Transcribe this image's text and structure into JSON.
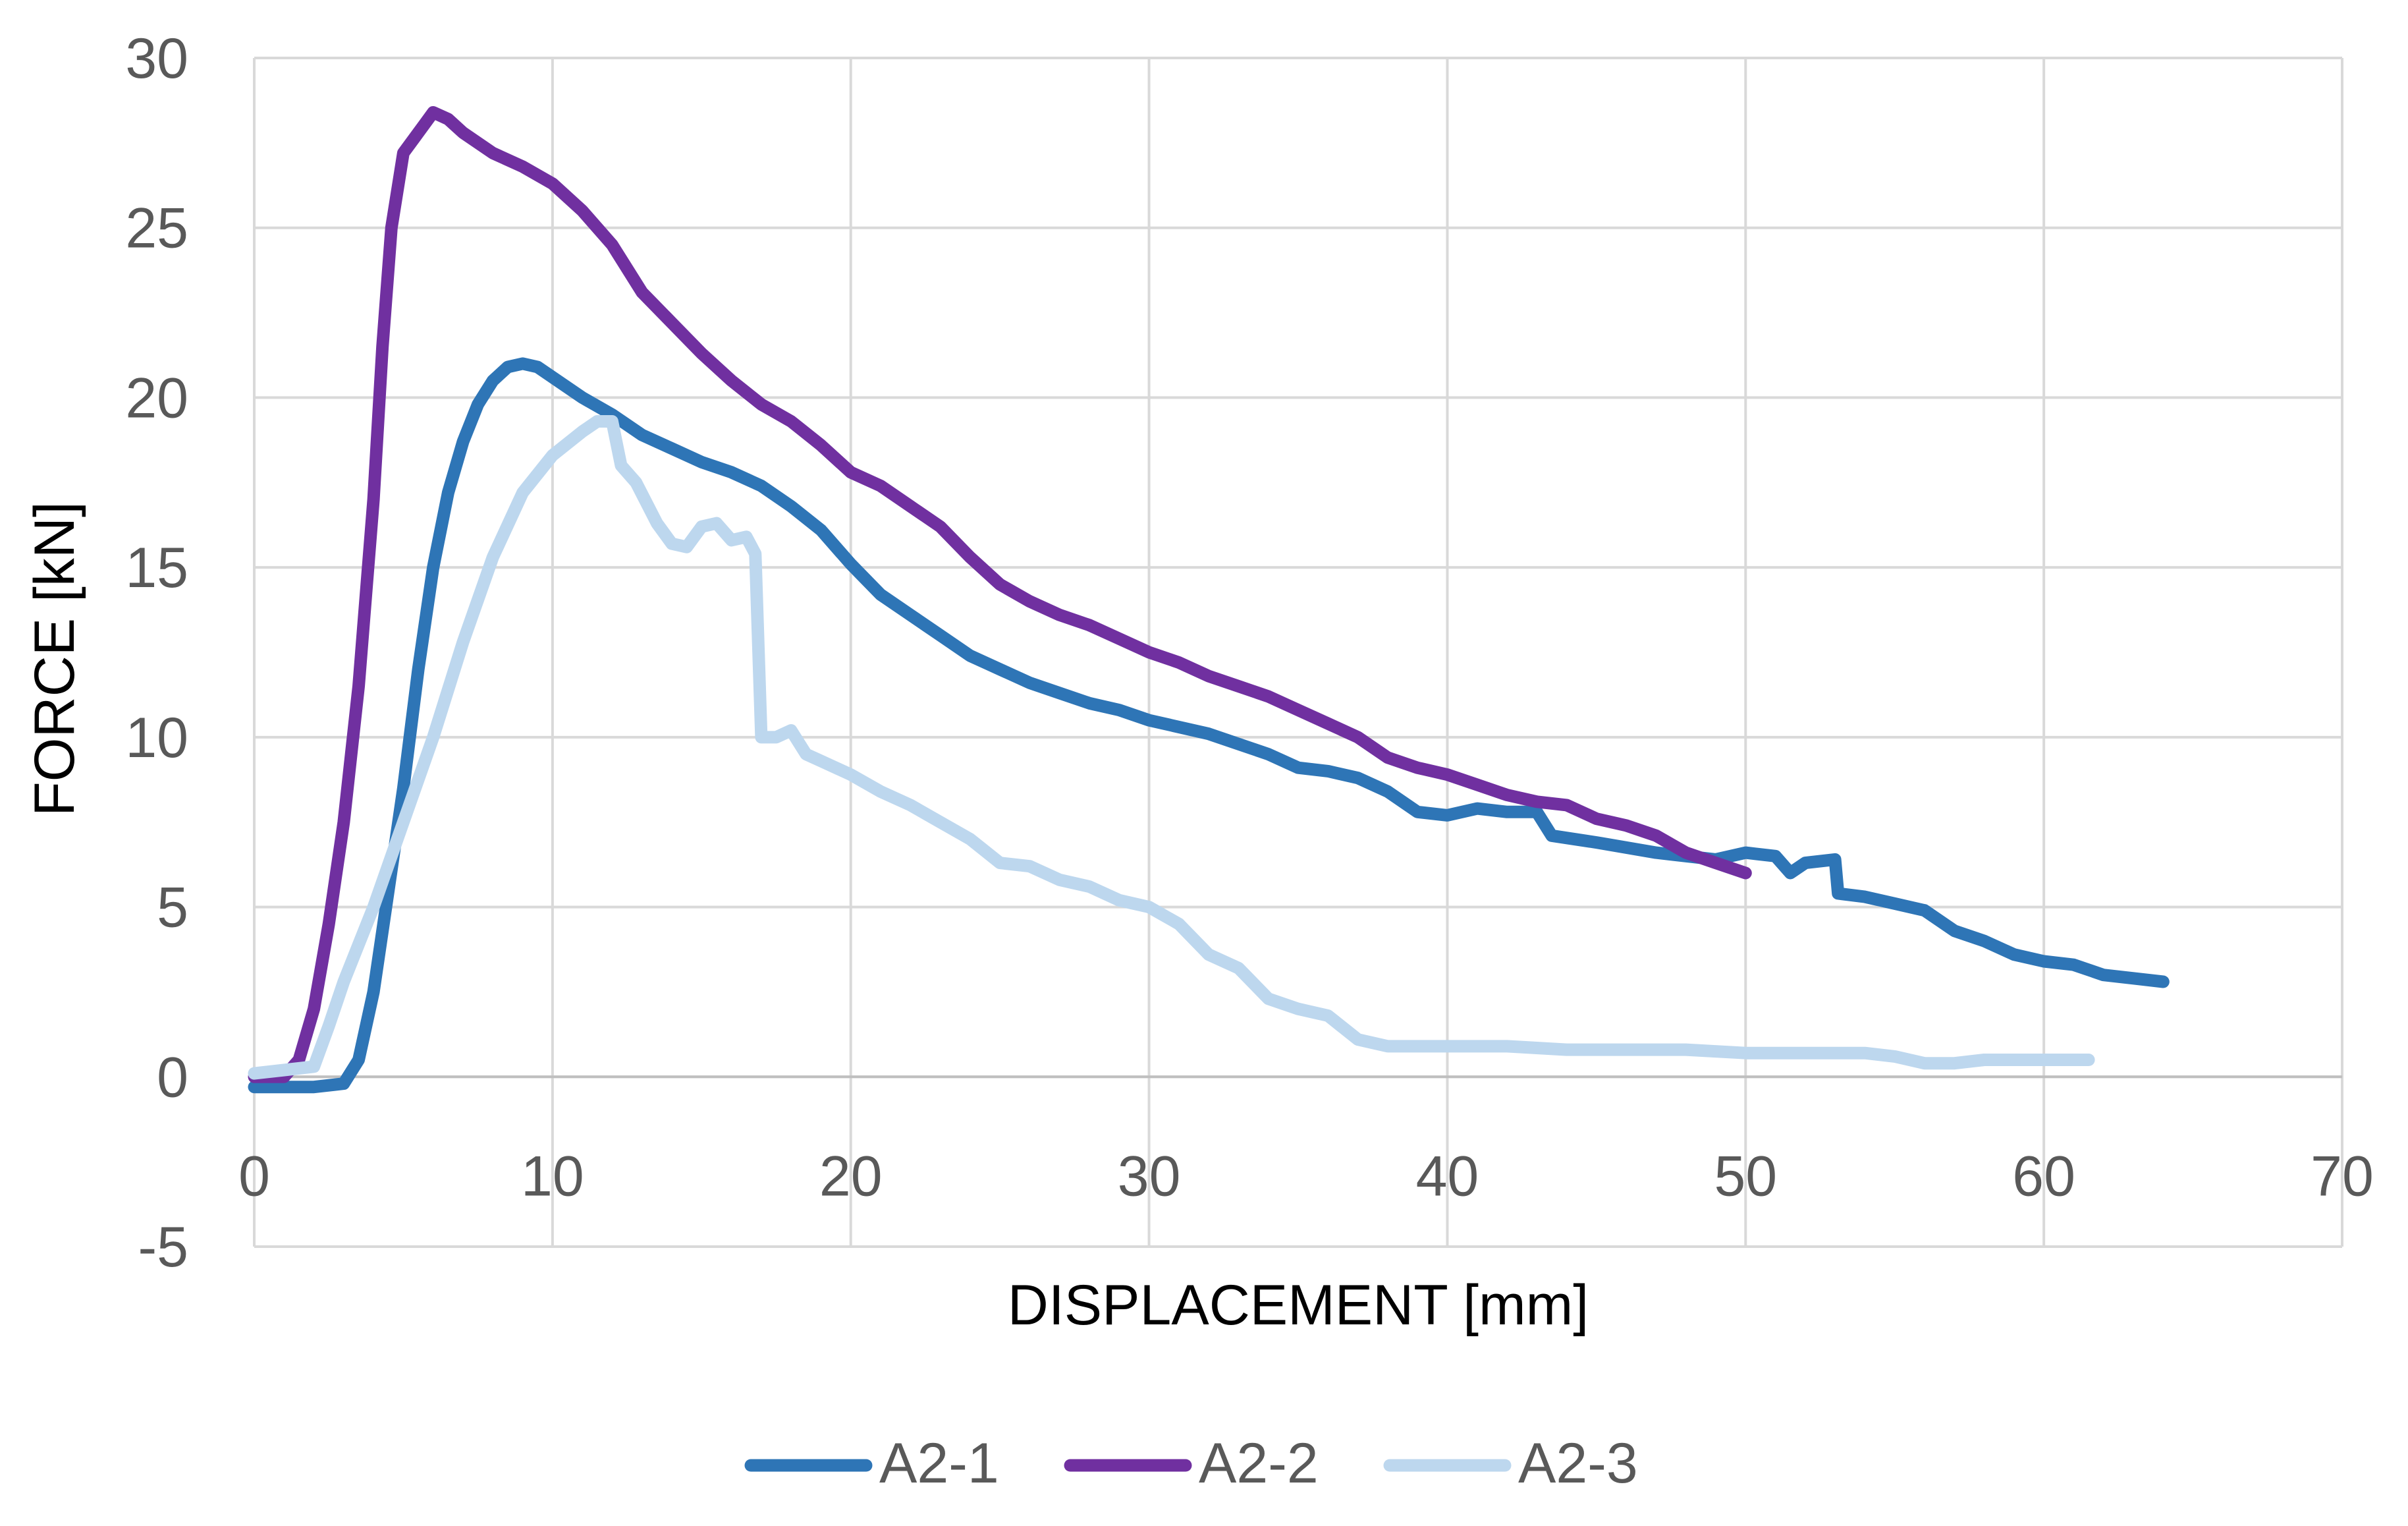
{
  "chart_data": {
    "type": "line",
    "title": "",
    "xlabel": "DISPLACEMENT [mm]",
    "ylabel": "FORCE [kN]",
    "xlim": [
      0,
      70
    ],
    "ylim": [
      -5,
      30
    ],
    "xticks": [
      0,
      10,
      20,
      30,
      40,
      50,
      60,
      70
    ],
    "yticks": [
      -5,
      0,
      5,
      10,
      15,
      20,
      25,
      30
    ],
    "grid": true,
    "legend_position": "bottom",
    "series": [
      {
        "name": "A2-1",
        "color": "#2E75B6",
        "points": [
          [
            0,
            -0.3
          ],
          [
            1,
            -0.3
          ],
          [
            2,
            -0.3
          ],
          [
            3,
            -0.2
          ],
          [
            3.5,
            0.5
          ],
          [
            4,
            2.5
          ],
          [
            4.5,
            5.5
          ],
          [
            5,
            8.5
          ],
          [
            5.5,
            12
          ],
          [
            6,
            15
          ],
          [
            6.5,
            17.2
          ],
          [
            7,
            18.7
          ],
          [
            7.5,
            19.8
          ],
          [
            8,
            20.5
          ],
          [
            8.5,
            20.9
          ],
          [
            9,
            21.0
          ],
          [
            9.5,
            20.9
          ],
          [
            10,
            20.6
          ],
          [
            11,
            20.0
          ],
          [
            12,
            19.5
          ],
          [
            13,
            18.9
          ],
          [
            14,
            18.5
          ],
          [
            15,
            18.1
          ],
          [
            16,
            17.8
          ],
          [
            17,
            17.4
          ],
          [
            18,
            16.8
          ],
          [
            19,
            16.1
          ],
          [
            20,
            15.1
          ],
          [
            21,
            14.2
          ],
          [
            22,
            13.6
          ],
          [
            23,
            13.0
          ],
          [
            24,
            12.4
          ],
          [
            25,
            12.0
          ],
          [
            26,
            11.6
          ],
          [
            27,
            11.3
          ],
          [
            28,
            11.0
          ],
          [
            29,
            10.8
          ],
          [
            30,
            10.5
          ],
          [
            32,
            10.1
          ],
          [
            34,
            9.5
          ],
          [
            35,
            9.1
          ],
          [
            36,
            9.0
          ],
          [
            37,
            8.8
          ],
          [
            38,
            8.4
          ],
          [
            39,
            7.8
          ],
          [
            40,
            7.7
          ],
          [
            41,
            7.9
          ],
          [
            42,
            7.8
          ],
          [
            43,
            7.8
          ],
          [
            43.5,
            7.1
          ],
          [
            45,
            6.9
          ],
          [
            47,
            6.6
          ],
          [
            48,
            6.5
          ],
          [
            49,
            6.4
          ],
          [
            50,
            6.6
          ],
          [
            51,
            6.5
          ],
          [
            51.5,
            6.0
          ],
          [
            52,
            6.3
          ],
          [
            53,
            6.4
          ],
          [
            53.1,
            5.4
          ],
          [
            54,
            5.3
          ],
          [
            55,
            5.1
          ],
          [
            56,
            4.9
          ],
          [
            57,
            4.3
          ],
          [
            58,
            4.0
          ],
          [
            59,
            3.6
          ],
          [
            60,
            3.4
          ],
          [
            61,
            3.3
          ],
          [
            62,
            3.0
          ],
          [
            63,
            2.9
          ],
          [
            64,
            2.8
          ]
        ]
      },
      {
        "name": "A2-2",
        "color": "#7030A0",
        "points": [
          [
            0,
            0
          ],
          [
            1,
            0
          ],
          [
            1.5,
            0.5
          ],
          [
            2,
            2
          ],
          [
            2.5,
            4.5
          ],
          [
            3,
            7.5
          ],
          [
            3.5,
            11.5
          ],
          [
            4,
            17
          ],
          [
            4.3,
            21.5
          ],
          [
            4.6,
            25
          ],
          [
            5,
            27.2
          ],
          [
            5.5,
            27.8
          ],
          [
            6,
            28.4
          ],
          [
            6.5,
            28.2
          ],
          [
            7,
            27.8
          ],
          [
            8,
            27.2
          ],
          [
            9,
            26.8
          ],
          [
            10,
            26.3
          ],
          [
            11,
            25.5
          ],
          [
            12,
            24.5
          ],
          [
            13,
            23.1
          ],
          [
            14,
            22.2
          ],
          [
            15,
            21.3
          ],
          [
            16,
            20.5
          ],
          [
            17,
            19.8
          ],
          [
            18,
            19.3
          ],
          [
            19,
            18.6
          ],
          [
            20,
            17.8
          ],
          [
            21,
            17.4
          ],
          [
            22,
            16.8
          ],
          [
            23,
            16.2
          ],
          [
            24,
            15.3
          ],
          [
            25,
            14.5
          ],
          [
            26,
            14.0
          ],
          [
            27,
            13.6
          ],
          [
            28,
            13.3
          ],
          [
            29,
            12.9
          ],
          [
            30,
            12.5
          ],
          [
            31,
            12.2
          ],
          [
            32,
            11.8
          ],
          [
            33,
            11.5
          ],
          [
            34,
            11.2
          ],
          [
            35,
            10.8
          ],
          [
            36,
            10.4
          ],
          [
            37,
            10.0
          ],
          [
            38,
            9.4
          ],
          [
            39,
            9.1
          ],
          [
            40,
            8.9
          ],
          [
            41,
            8.6
          ],
          [
            42,
            8.3
          ],
          [
            43,
            8.1
          ],
          [
            44,
            8.0
          ],
          [
            45,
            7.6
          ],
          [
            46,
            7.4
          ],
          [
            47,
            7.1
          ],
          [
            48,
            6.6
          ],
          [
            49,
            6.3
          ],
          [
            50,
            6.0
          ]
        ]
      },
      {
        "name": "A2-3",
        "color": "#BDD7EE",
        "points": [
          [
            0,
            0.1
          ],
          [
            1,
            0.2
          ],
          [
            2,
            0.3
          ],
          [
            2.5,
            1.5
          ],
          [
            3,
            2.8
          ],
          [
            4,
            5.0
          ],
          [
            5,
            7.5
          ],
          [
            6,
            10
          ],
          [
            7,
            12.8
          ],
          [
            8,
            15.3
          ],
          [
            9,
            17.2
          ],
          [
            10,
            18.3
          ],
          [
            11,
            19.0
          ],
          [
            11.5,
            19.3
          ],
          [
            12,
            19.3
          ],
          [
            12.3,
            18.0
          ],
          [
            12.8,
            17.5
          ],
          [
            13.5,
            16.3
          ],
          [
            14,
            15.7
          ],
          [
            14.5,
            15.6
          ],
          [
            15,
            16.2
          ],
          [
            15.5,
            16.3
          ],
          [
            16,
            15.8
          ],
          [
            16.5,
            15.9
          ],
          [
            16.8,
            15.4
          ],
          [
            17,
            10.0
          ],
          [
            17.5,
            10.0
          ],
          [
            18,
            10.2
          ],
          [
            18.5,
            9.5
          ],
          [
            19,
            9.3
          ],
          [
            20,
            8.9
          ],
          [
            21,
            8.4
          ],
          [
            22,
            8.0
          ],
          [
            23,
            7.5
          ],
          [
            24,
            7.0
          ],
          [
            25,
            6.3
          ],
          [
            26,
            6.2
          ],
          [
            27,
            5.8
          ],
          [
            28,
            5.6
          ],
          [
            29,
            5.2
          ],
          [
            30,
            5.0
          ],
          [
            31,
            4.5
          ],
          [
            32,
            3.6
          ],
          [
            33,
            3.2
          ],
          [
            34,
            2.3
          ],
          [
            35,
            2.0
          ],
          [
            36,
            1.8
          ],
          [
            37,
            1.1
          ],
          [
            38,
            0.9
          ],
          [
            40,
            0.9
          ],
          [
            42,
            0.9
          ],
          [
            44,
            0.8
          ],
          [
            46,
            0.8
          ],
          [
            48,
            0.8
          ],
          [
            50,
            0.7
          ],
          [
            52,
            0.7
          ],
          [
            54,
            0.7
          ],
          [
            55,
            0.6
          ],
          [
            56,
            0.4
          ],
          [
            57,
            0.4
          ],
          [
            58,
            0.5
          ],
          [
            60,
            0.5
          ],
          [
            61.5,
            0.5
          ]
        ]
      }
    ]
  }
}
